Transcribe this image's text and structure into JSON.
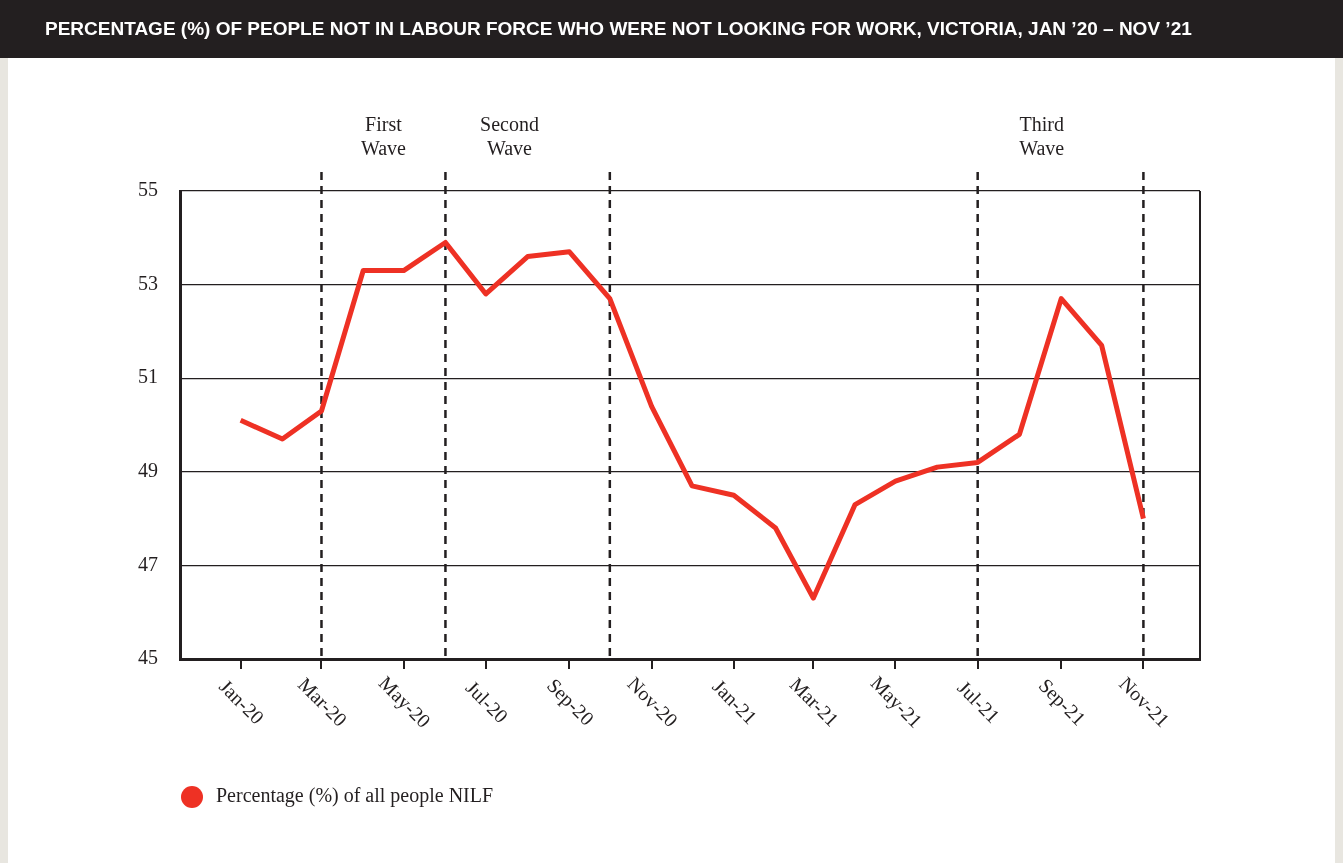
{
  "chart_data": {
    "type": "line",
    "title": "PERCENTAGE (%) OF PEOPLE NOT IN LABOUR FORCE WHO WERE NOT LOOKING FOR WORK, VICTORIA, JAN ’20 – NOV ’21",
    "x": [
      "2020-01",
      "2020-02",
      "2020-03",
      "2020-04",
      "2020-05",
      "2020-06",
      "2020-07",
      "2020-08",
      "2020-09",
      "2020-10",
      "2020-11",
      "2020-12",
      "2021-01",
      "2021-02",
      "2021-03",
      "2021-04",
      "2021-05",
      "2021-06",
      "2021-07",
      "2021-08",
      "2021-09",
      "2021-10",
      "2021-11"
    ],
    "series": [
      {
        "name": "Percentage (%) of all people NILF",
        "color": "#ee3124",
        "values": [
          50.1,
          49.7,
          50.3,
          53.3,
          53.3,
          53.9,
          52.8,
          53.6,
          53.7,
          52.7,
          50.4,
          48.7,
          48.5,
          47.8,
          46.3,
          48.3,
          48.8,
          49.1,
          49.2,
          49.8,
          52.7,
          51.7,
          48.0
        ]
      }
    ],
    "xlim": [
      "2019-11-17",
      "2021-12-13"
    ],
    "xticks": [
      {
        "value": "2020-01",
        "label": "Jan-20"
      },
      {
        "value": "2020-03",
        "label": "Mar-20"
      },
      {
        "value": "2020-05",
        "label": "May-20"
      },
      {
        "value": "2020-07",
        "label": "Jul-20"
      },
      {
        "value": "2020-09",
        "label": "Sep-20"
      },
      {
        "value": "2020-11",
        "label": "Nov-20"
      },
      {
        "value": "2021-01",
        "label": "Jan-21"
      },
      {
        "value": "2021-03",
        "label": "Mar-21"
      },
      {
        "value": "2021-05",
        "label": "May-21"
      },
      {
        "value": "2021-07",
        "label": "Jul-21"
      },
      {
        "value": "2021-09",
        "label": "Sep-21"
      },
      {
        "value": "2021-11",
        "label": "Nov-21"
      }
    ],
    "ylim": [
      45,
      55
    ],
    "yticks": [
      45,
      47,
      49,
      51,
      53,
      55
    ],
    "grid": "y",
    "legend": "bottom left",
    "marker": "none",
    "line_style": "solid",
    "ref_lines": [
      {
        "axis": "x",
        "value": "2020-03",
        "line_style": "dashed",
        "color": "#231f20",
        "label": "First Wave"
      },
      {
        "axis": "x",
        "value": "2020-06",
        "line_style": "dashed",
        "color": "#231f20",
        "label": "Second Wave"
      },
      {
        "axis": "x",
        "value": "2020-10",
        "line_style": "dashed",
        "color": "#231f20"
      },
      {
        "axis": "x",
        "value": "2021-07",
        "line_style": "dashed",
        "color": "#231f20",
        "label": "Third Wave"
      },
      {
        "axis": "x",
        "value": "2021-11",
        "line_style": "dashed",
        "color": "#231f20"
      }
    ]
  }
}
